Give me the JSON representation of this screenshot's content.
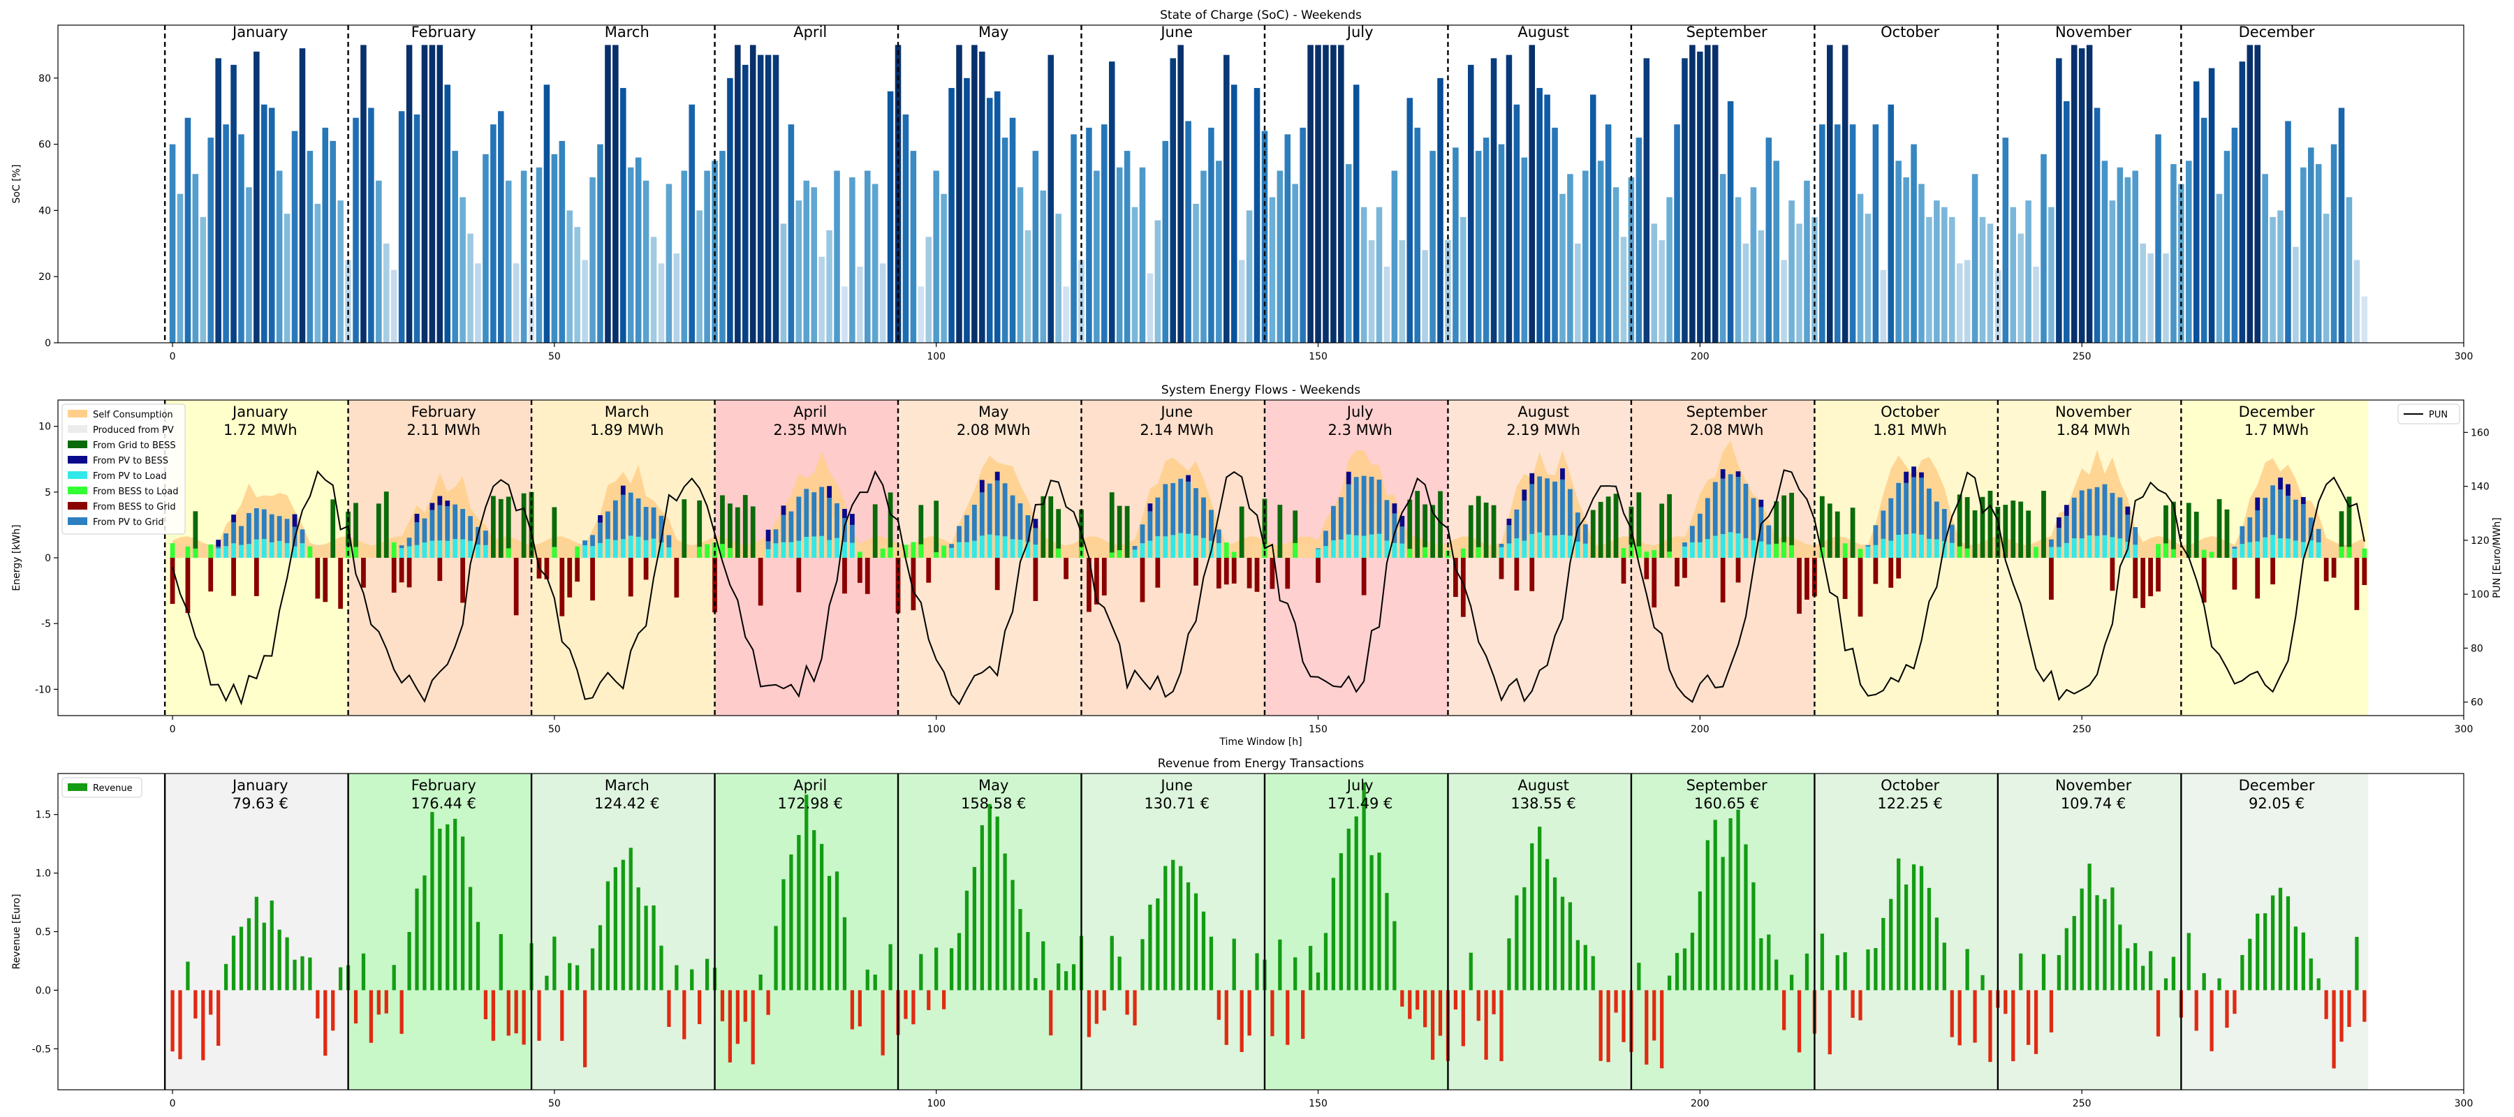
{
  "chart_data": [
    {
      "type": "bar",
      "title": "State of Charge (SoC) - Weekends",
      "xlabel": "",
      "ylabel": "SoC [%]",
      "xlim": [
        -15,
        300
      ],
      "ylim": [
        0,
        96
      ],
      "xticks": [
        0,
        50,
        100,
        150,
        200,
        250,
        300
      ],
      "yticks": [
        0,
        20,
        40,
        60,
        80
      ],
      "month_boundaries": [
        -1,
        23,
        47,
        71,
        95,
        119,
        143,
        167,
        191,
        215,
        239,
        263
      ],
      "months": [
        "January",
        "February",
        "March",
        "April",
        "May",
        "June",
        "July",
        "August",
        "September",
        "October",
        "November",
        "December"
      ],
      "series": [
        {
          "name": "",
          "x_start": 0,
          "values": [
            60,
            45,
            68,
            51,
            38,
            62,
            86,
            66,
            84,
            63,
            47,
            88,
            72,
            71,
            52,
            39,
            64,
            89,
            58,
            42,
            65,
            61,
            43,
            25,
            68,
            90,
            71,
            49,
            30,
            22,
            70,
            90,
            69,
            90,
            90,
            90,
            78,
            58,
            44,
            33,
            24,
            57,
            66,
            70,
            49,
            24,
            52,
            14,
            53,
            78,
            57,
            61,
            40,
            35,
            25,
            50,
            60,
            90,
            90,
            77,
            53,
            56,
            49,
            32,
            24,
            48,
            27,
            52,
            72,
            40,
            52,
            55,
            58,
            80,
            90,
            84,
            90,
            87,
            87,
            87,
            36,
            66,
            43,
            49,
            47,
            26,
            34,
            52,
            17,
            50,
            23,
            52,
            48,
            24,
            76,
            90,
            69,
            58,
            17,
            32,
            52,
            45,
            77,
            90,
            80,
            90,
            88,
            74,
            76,
            62,
            68,
            47,
            34,
            58,
            46,
            87,
            39,
            17,
            63,
            25,
            65,
            52,
            66,
            85,
            53,
            58,
            41,
            53,
            21,
            37,
            61,
            86,
            90,
            67,
            42,
            52,
            65,
            55,
            87,
            78,
            25,
            40,
            77,
            64,
            44,
            52,
            63,
            48,
            65,
            90,
            90,
            90,
            90,
            90,
            54,
            78,
            41,
            31,
            41,
            23,
            52,
            31,
            74,
            65,
            28,
            58,
            80,
            31,
            59,
            38,
            84,
            58,
            62,
            86,
            60,
            87,
            72,
            56,
            90,
            77,
            75,
            65,
            45,
            51,
            30,
            52,
            75,
            55,
            66,
            47,
            32,
            50,
            62,
            86,
            36,
            31,
            44,
            66,
            86,
            90,
            88,
            90,
            90,
            51,
            73,
            44,
            30,
            47,
            34,
            62,
            55,
            25,
            43,
            36,
            49,
            38,
            66,
            90,
            66,
            90,
            66,
            45,
            39,
            66,
            22,
            72,
            55,
            50,
            60,
            48,
            38,
            43,
            41,
            38,
            24,
            25,
            51,
            38,
            36,
            22,
            62,
            41,
            33,
            43,
            23,
            57,
            41,
            86,
            73,
            90,
            89,
            90,
            71,
            55,
            43,
            53,
            50,
            52,
            30,
            27,
            63,
            27,
            54,
            48,
            55,
            79,
            68,
            83,
            45,
            58,
            65,
            85,
            90,
            90,
            51,
            38,
            40,
            67,
            29,
            53,
            59,
            54,
            39,
            60,
            71,
            44,
            25,
            14
          ],
          "color_scale": "Blues"
        }
      ]
    },
    {
      "type": "bar",
      "title": "System Energy Flows - Weekends",
      "xlabel": "Time Window [h]",
      "ylabel": "Energy [kWh]",
      "y2label": "PUN [Euro/MWh]",
      "xlim": [
        -15,
        300
      ],
      "ylim": [
        -12,
        12
      ],
      "y2lim": [
        55,
        172
      ],
      "xticks": [
        0,
        50,
        100,
        150,
        200,
        250,
        300
      ],
      "yticks": [
        -10,
        -5,
        0,
        5,
        10
      ],
      "y2ticks": [
        60,
        80,
        100,
        120,
        140,
        160
      ],
      "legend": [
        "Self Consumption",
        "Produced from PV",
        "From Grid to BESS",
        "From PV to BESS",
        "From PV to Load",
        "From BESS to Load",
        "From BESS to Grid",
        "From PV to Grid"
      ],
      "legend_placement": "top-left",
      "legend2": [
        "PUN"
      ],
      "legend2_placement": "top-right",
      "month_labels": [
        "January",
        "February",
        "March",
        "April",
        "May",
        "June",
        "July",
        "August",
        "September",
        "October",
        "November",
        "December"
      ],
      "month_energy": [
        "1.72 MWh",
        "2.11 MWh",
        "1.89 MWh",
        "2.35 MWh",
        "2.08 MWh",
        "2.14 MWh",
        "2.3 MWh",
        "2.19 MWh",
        "2.08 MWh",
        "1.81 MWh",
        "1.84 MWh",
        "1.7 MWh"
      ],
      "month_energy_values": [
        1.72,
        2.11,
        1.89,
        2.35,
        2.08,
        2.14,
        2.3,
        2.19,
        2.08,
        1.81,
        1.84,
        1.7
      ],
      "series_colors": {
        "Self Consumption": "#ffcf8a",
        "Produced from PV": "#ececec",
        "From Grid to BESS": "#0b6b0b",
        "From PV to BESS": "#0a0a8c",
        "From PV to Load": "#33e8e8",
        "From BESS to Load": "#33ff33",
        "From BESS to Grid": "#8b0000",
        "From PV to Grid": "#2c7fc0",
        "PUN": "#000000"
      },
      "pun_line": "cyclic daily profile, range approx. 62-155 Euro/MWh"
    },
    {
      "type": "bar",
      "title": "Revenue from Energy Transactions",
      "xlabel": "",
      "ylabel": "Revenue [Euro]",
      "xlim": [
        -15,
        300
      ],
      "ylim": [
        -0.85,
        1.85
      ],
      "xticks": [
        0,
        50,
        100,
        150,
        200,
        250,
        300
      ],
      "yticks": [
        -0.5,
        0.0,
        0.5,
        1.0,
        1.5
      ],
      "legend": [
        "Revenue"
      ],
      "legend_placement": "top-left",
      "month_labels": [
        "January",
        "February",
        "March",
        "April",
        "May",
        "June",
        "July",
        "August",
        "September",
        "October",
        "November",
        "December"
      ],
      "month_revenue": [
        "79.63 €",
        "176.44 €",
        "124.42 €",
        "172.98 €",
        "158.58 €",
        "130.71 €",
        "171.49 €",
        "138.55 €",
        "160.65 €",
        "122.25 €",
        "109.74 €",
        "92.05 €"
      ],
      "month_revenue_values": [
        79.63,
        176.44,
        124.42,
        172.98,
        158.58,
        130.71,
        171.49,
        138.55,
        160.65,
        122.25,
        109.74,
        92.05
      ]
    }
  ],
  "page": {
    "background": "#ffffff"
  }
}
